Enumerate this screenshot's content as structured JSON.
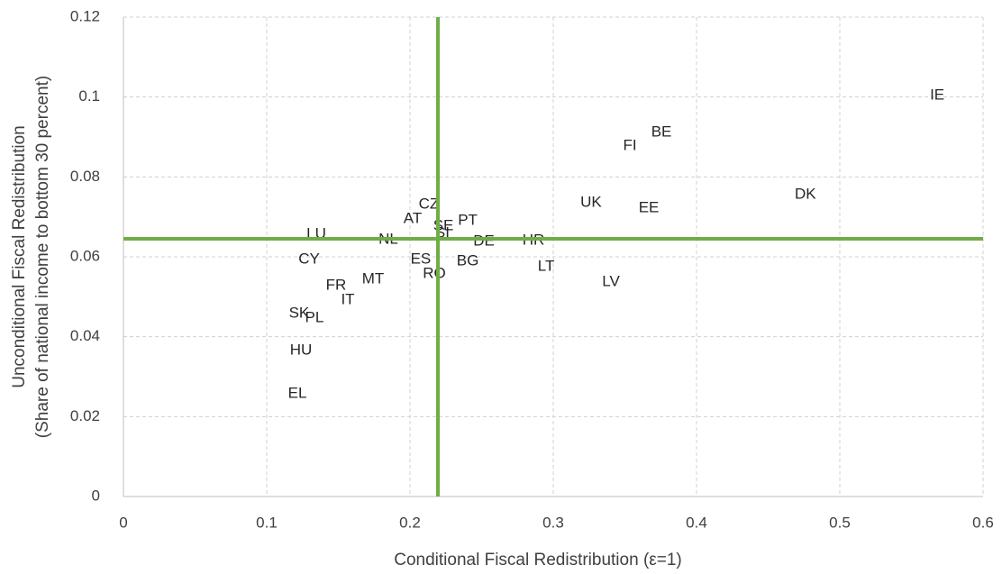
{
  "chart_data": {
    "type": "scatter",
    "x_label": "Conditional Fiscal Redistribution (ε=1)",
    "y_label": [
      "Unconditional Fiscal Redistribution",
      "(Share of national income to bottom 30 percent)"
    ],
    "labels": [
      "IE",
      "BE",
      "FI",
      "DK",
      "UK",
      "EE",
      "CZ",
      "AT",
      "SE",
      "PT",
      "SI",
      "LU",
      "NL",
      "DE",
      "HR",
      "CY",
      "ES",
      "BG",
      "LT",
      "RO",
      "LV",
      "MT",
      "FR",
      "IT",
      "SK",
      "PL",
      "HU",
      "EL"
    ],
    "x": [
      0.568,
      0.3755,
      0.3535,
      0.476,
      0.3264,
      0.3667,
      0.2132,
      0.2019,
      0.2233,
      0.2403,
      0.2226,
      0.1346,
      0.1849,
      0.2516,
      0.2862,
      0.1296,
      0.2075,
      0.2403,
      0.295,
      0.217,
      0.3403,
      0.1742,
      0.1484,
      0.1566,
      0.1226,
      0.1333,
      0.1239,
      0.1214
    ],
    "y": [
      0.1004,
      0.0911,
      0.0877,
      0.0756,
      0.0735,
      0.0722,
      0.0731,
      0.0695,
      0.0677,
      0.069,
      0.0659,
      0.0656,
      0.0643,
      0.0638,
      0.0641,
      0.0593,
      0.0593,
      0.0589,
      0.0575,
      0.0557,
      0.0537,
      0.0544,
      0.0528,
      0.0492,
      0.0458,
      0.0447,
      0.0365,
      0.0257
    ],
    "xlim": [
      0,
      0.6
    ],
    "ylim": [
      0,
      0.12
    ],
    "xticks": [
      0,
      0.1,
      0.2,
      0.3,
      0.4,
      0.5,
      0.6
    ],
    "yticks": [
      0,
      0.02,
      0.04,
      0.06,
      0.08,
      0.1,
      0.12
    ],
    "grid": true,
    "reference_x": 0.2195,
    "reference_y": 0.0645,
    "reference_color": "#70ad47"
  }
}
